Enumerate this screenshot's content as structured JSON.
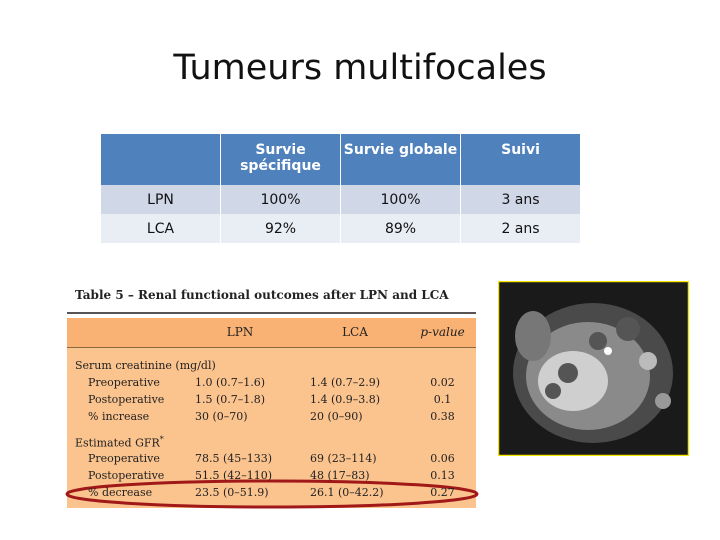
{
  "title": "Tumeurs multifocales",
  "table": {
    "headers": [
      "Survie spécifique",
      "Survie globale",
      "Suivi"
    ],
    "rows": [
      [
        "LPN",
        "100%",
        "100%",
        "3 ans"
      ],
      [
        "LCA",
        "92%",
        "89%",
        "2 ans"
      ]
    ]
  },
  "outcomes": {
    "title": "Table 5 – Renal functional outcomes after LPN and LCA",
    "headers": [
      "LPN",
      "LCA",
      "p-value"
    ],
    "sections": [
      {
        "name": "Serum creatinine (mg/dl)",
        "rows": [
          [
            "Preoperative",
            "1.0 (0.7–1.6)",
            "1.4 (0.7–2.9)",
            "0.02"
          ],
          [
            "Postoperative",
            "1.5 (0.7–1.8)",
            "1.4 (0.9–3.8)",
            "0.1"
          ],
          [
            "% increase",
            "30 (0–70)",
            "20 (0–90)",
            "0.38"
          ]
        ]
      },
      {
        "name": "Estimated GFR",
        "note": "*",
        "rows": [
          [
            "Preoperative",
            "78.5 (45–133)",
            "69 (23–114)",
            "0.06"
          ],
          [
            "Postoperative",
            "51.5 (42–110)",
            "48 (17–83)",
            "0.13"
          ],
          [
            "% decrease",
            "23.5 (0–51.9)",
            "26.1 (0–42.2)",
            "0.27"
          ]
        ]
      }
    ]
  }
}
